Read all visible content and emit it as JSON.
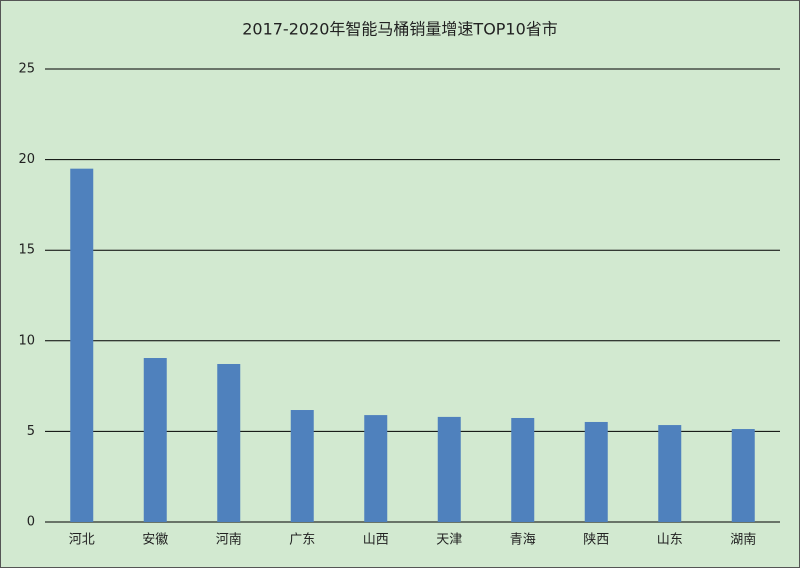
{
  "chart_data": {
    "type": "bar",
    "title": "2017-2020年智能马桶销量增速TOP10省市",
    "categories": [
      "河北",
      "安徽",
      "河南",
      "广东",
      "山西",
      "天津",
      "青海",
      "陕西",
      "山东",
      "湖南"
    ],
    "values": [
      19.5,
      9.05,
      8.72,
      6.18,
      5.9,
      5.8,
      5.74,
      5.52,
      5.35,
      5.13
    ],
    "color": "#4f81bd",
    "ylim": [
      0,
      25
    ],
    "yticks": [
      0,
      5,
      10,
      15,
      20,
      25
    ],
    "grid": true
  }
}
